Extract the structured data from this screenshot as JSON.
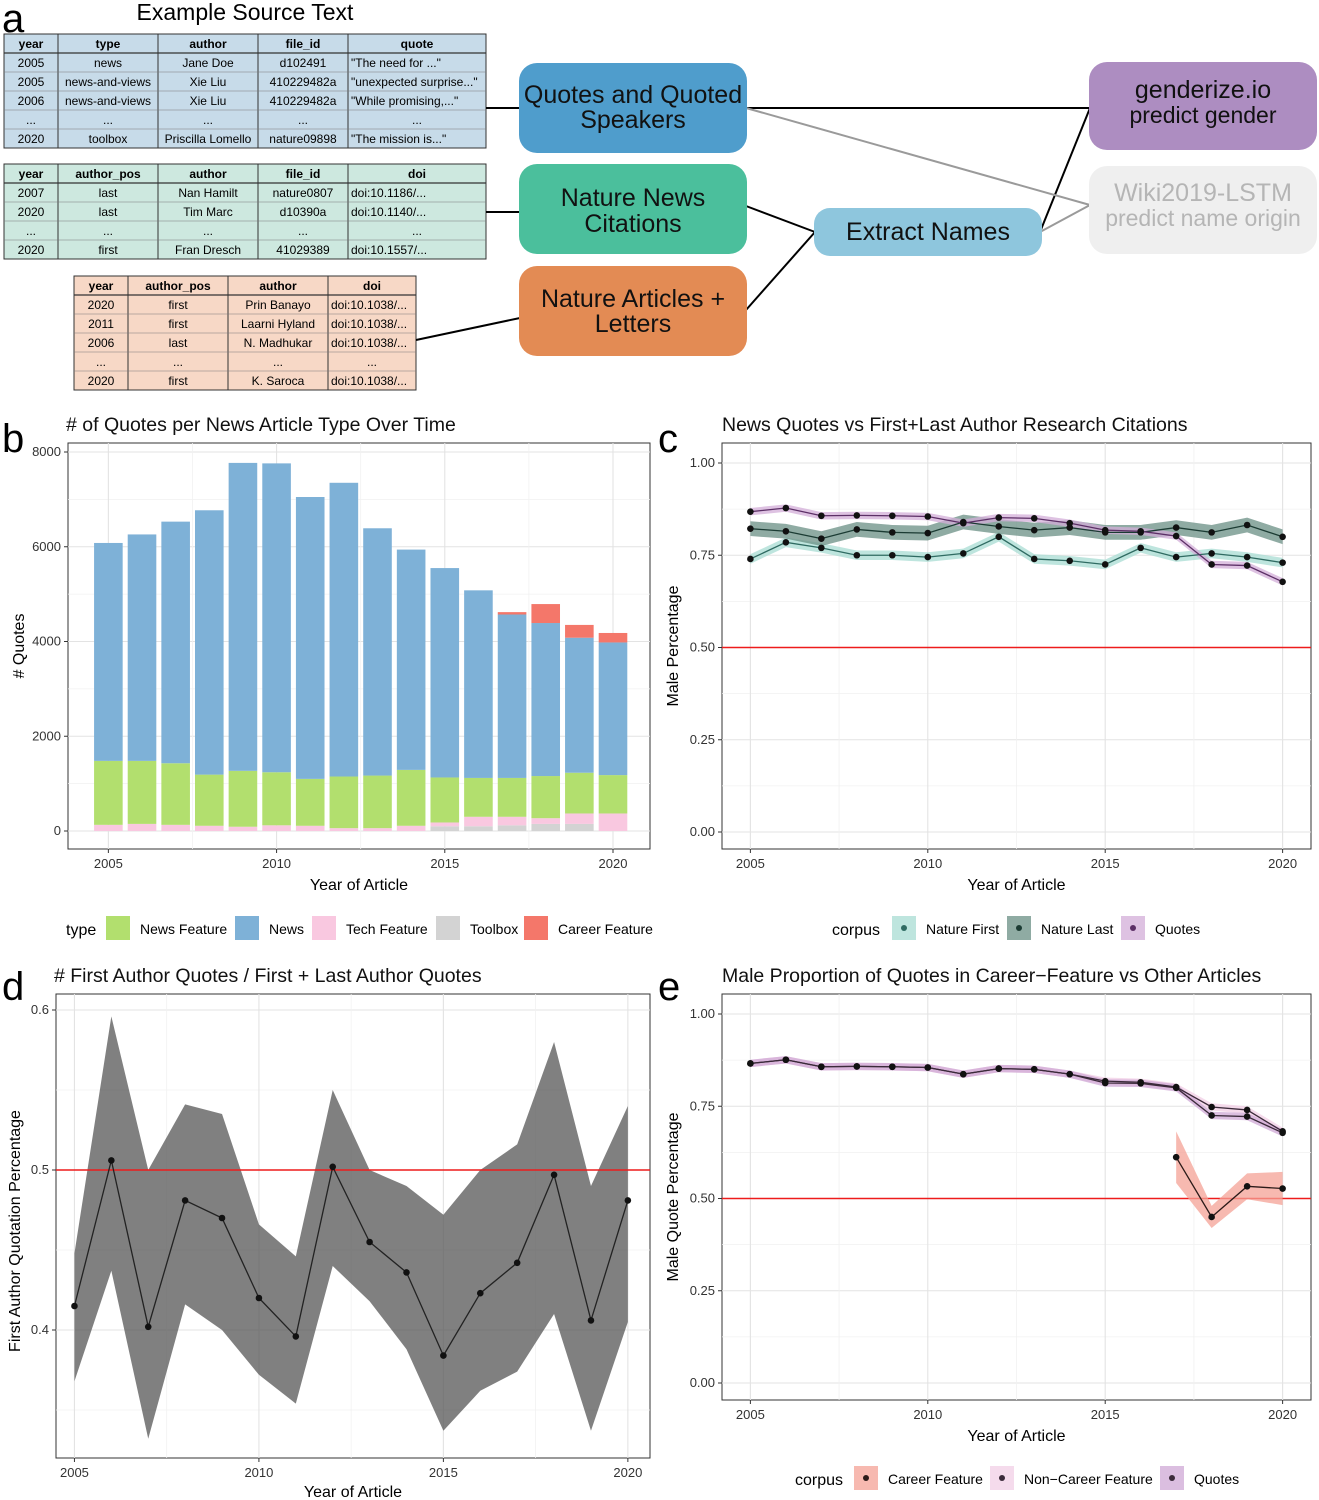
{
  "panel_letters": {
    "a": "a",
    "b": "b",
    "c": "c",
    "d": "d",
    "e": "e"
  },
  "panel_a": {
    "title": "Example Source Text",
    "colors": {
      "blue_table": "#c7dbe9",
      "green_table": "#cde8df",
      "orange_table": "#f7d8c6"
    },
    "tables": [
      {
        "name": "quotes-table",
        "columns": [
          "year",
          "type",
          "author",
          "file_id",
          "quote"
        ],
        "rows": [
          [
            "2005",
            "news",
            "Jane Doe",
            "d102491",
            "\"The need for ...\""
          ],
          [
            "2005",
            "news-and-views",
            "Xie Liu",
            "410229482a",
            "\"unexpected surprise...\""
          ],
          [
            "2006",
            "news-and-views",
            "Xie Liu",
            "410229482a",
            "\"While promising,...\""
          ],
          [
            "...",
            "...",
            "...",
            "...",
            "..."
          ],
          [
            "2020",
            "toolbox",
            "Priscilla Lomello",
            "nature09898",
            "\"The mission is...\""
          ]
        ]
      },
      {
        "name": "citations-table",
        "columns": [
          "year",
          "author_pos",
          "author",
          "file_id",
          "doi"
        ],
        "rows": [
          [
            "2007",
            "last",
            "Nan Hamilt",
            "nature0807",
            "doi:10.1186/..."
          ],
          [
            "2020",
            "last",
            "Tim Marc",
            "d10390a",
            "doi:10.1140/..."
          ],
          [
            "...",
            "...",
            "...",
            "...",
            "..."
          ],
          [
            "2020",
            "first",
            "Fran Dresch",
            "41029389",
            "doi:10.1557/..."
          ]
        ]
      },
      {
        "name": "articles-table",
        "columns": [
          "year",
          "author_pos",
          "author",
          "doi"
        ],
        "rows": [
          [
            "2020",
            "first",
            "Prin Banayo",
            "doi:10.1038/..."
          ],
          [
            "2011",
            "first",
            "Laarni Hyland",
            "doi:10.1038/..."
          ],
          [
            "2006",
            "last",
            "N. Madhukar",
            "doi:10.1038/..."
          ],
          [
            "...",
            "...",
            "...",
            "..."
          ],
          [
            "2020",
            "first",
            "K. Saroca",
            "doi:10.1038/..."
          ]
        ]
      }
    ],
    "boxes": {
      "quotes": {
        "line1": "Quotes and Quoted",
        "line2": "Speakers",
        "color": "#4f9dcc"
      },
      "news": {
        "line1": "Nature News",
        "line2": "Citations",
        "color": "#4bbf9c"
      },
      "articles": {
        "line1": "Nature Articles +",
        "line2": "Letters",
        "color": "#e38b54"
      },
      "extract": {
        "line1": "Extract Names",
        "color": "#8ec6dd"
      },
      "genderize": {
        "line1": "genderize.io",
        "line2": "predict gender",
        "color": "#ad8dc1"
      },
      "wiki": {
        "line1": "Wiki2019-LSTM",
        "line2": "predict name origin",
        "color": "#efefef"
      }
    }
  },
  "chart_data": [
    {
      "id": "b",
      "type": "bar",
      "stacked": true,
      "title": "# of Quotes per News Article Type Over Time",
      "xlabel": "Year of Article",
      "ylabel": "# Quotes",
      "ylim": [
        0,
        8000
      ],
      "yticks": [
        "0",
        "2000",
        "4000",
        "6000",
        "8000"
      ],
      "xticks": [
        "2005",
        "2010",
        "2015",
        "2020"
      ],
      "categories": [
        2005,
        2006,
        2007,
        2008,
        2009,
        2010,
        2011,
        2012,
        2013,
        2014,
        2015,
        2016,
        2017,
        2018,
        2019,
        2020
      ],
      "series": [
        {
          "name": "Toolbox",
          "color": "#d3d3d3",
          "values": [
            0,
            0,
            0,
            0,
            0,
            0,
            0,
            0,
            0,
            0,
            100,
            100,
            120,
            150,
            150,
            0
          ]
        },
        {
          "name": "Tech Feature",
          "color": "#f9c8e0",
          "values": [
            130,
            150,
            130,
            110,
            90,
            120,
            110,
            60,
            60,
            110,
            80,
            200,
            180,
            120,
            220,
            370
          ]
        },
        {
          "name": "News Feature",
          "color": "#b2df6e",
          "values": [
            1350,
            1330,
            1300,
            1080,
            1180,
            1120,
            990,
            1090,
            1110,
            1180,
            950,
            820,
            820,
            890,
            860,
            810
          ]
        },
        {
          "name": "News",
          "color": "#7eb1d7",
          "values": [
            4600,
            4780,
            5100,
            5580,
            6500,
            6520,
            5950,
            6200,
            5220,
            4650,
            4420,
            3960,
            3450,
            3230,
            2850,
            2800
          ]
        },
        {
          "name": "Career Feature",
          "color": "#f4776a",
          "values": [
            0,
            0,
            0,
            0,
            0,
            0,
            0,
            0,
            0,
            0,
            0,
            0,
            50,
            400,
            270,
            200
          ]
        }
      ],
      "legend_title": "type",
      "legend": [
        "News Feature",
        "News",
        "Tech Feature",
        "Toolbox",
        "Career Feature"
      ]
    },
    {
      "id": "c",
      "type": "line",
      "title": "News Quotes vs First+Last Author Research Citations",
      "xlabel": "Year of Article",
      "ylabel": "Male Percentage",
      "ylim": [
        0,
        1
      ],
      "yticks": [
        "0.00",
        "0.25",
        "0.50",
        "0.75",
        "1.00"
      ],
      "xticks": [
        "2005",
        "2010",
        "2015",
        "2020"
      ],
      "reference_line": 0.5,
      "x": [
        2005,
        2006,
        2007,
        2008,
        2009,
        2010,
        2011,
        2012,
        2013,
        2014,
        2015,
        2016,
        2017,
        2018,
        2019,
        2020
      ],
      "series": [
        {
          "name": "Nature First",
          "fill": "#a8dcd3",
          "line": "#2f6b62",
          "values": [
            0.74,
            0.785,
            0.77,
            0.75,
            0.75,
            0.745,
            0.755,
            0.8,
            0.74,
            0.735,
            0.725,
            0.77,
            0.745,
            0.755,
            0.745,
            0.73
          ],
          "band": 0.013
        },
        {
          "name": "Nature Last",
          "fill": "#6a8f84",
          "line": "#1b3b33",
          "values": [
            0.822,
            0.815,
            0.795,
            0.82,
            0.812,
            0.81,
            0.84,
            0.828,
            0.818,
            0.825,
            0.812,
            0.812,
            0.825,
            0.812,
            0.832,
            0.8
          ],
          "band": 0.02
        },
        {
          "name": "Quotes",
          "fill": "#d3aed8",
          "line": "#5c2f66",
          "values": [
            0.868,
            0.878,
            0.857,
            0.858,
            0.857,
            0.855,
            0.837,
            0.852,
            0.85,
            0.837,
            0.818,
            0.815,
            0.802,
            0.725,
            0.722,
            0.678
          ],
          "band": 0.01
        }
      ],
      "legend_title": "corpus",
      "legend": [
        "Nature First",
        "Nature Last",
        "Quotes"
      ]
    },
    {
      "id": "d",
      "type": "line",
      "title": "# First Author Quotes /  First + Last Author Quotes",
      "xlabel": "Year of Article",
      "ylabel": "First Author Quotation Percentage",
      "ylim": [
        0.32,
        0.61
      ],
      "yticks": [
        "0.4",
        "0.5",
        "0.6"
      ],
      "xticks": [
        "2005",
        "2010",
        "2015",
        "2020"
      ],
      "reference_line": 0.5,
      "x": [
        2005,
        2006,
        2007,
        2008,
        2009,
        2010,
        2011,
        2012,
        2013,
        2014,
        2015,
        2016,
        2017,
        2018,
        2019,
        2020
      ],
      "values": [
        0.415,
        0.506,
        0.402,
        0.481,
        0.47,
        0.42,
        0.396,
        0.502,
        0.455,
        0.436,
        0.384,
        0.423,
        0.442,
        0.497,
        0.406,
        0.481
      ],
      "upper": [
        0.448,
        0.596,
        0.5,
        0.541,
        0.535,
        0.466,
        0.446,
        0.55,
        0.5,
        0.49,
        0.472,
        0.5,
        0.516,
        0.58,
        0.49,
        0.54
      ],
      "lower": [
        0.368,
        0.437,
        0.332,
        0.416,
        0.4,
        0.372,
        0.354,
        0.44,
        0.418,
        0.388,
        0.337,
        0.362,
        0.374,
        0.41,
        0.337,
        0.405
      ]
    },
    {
      "id": "e",
      "type": "line",
      "title": "Male Proportion of Quotes in Career−Feature vs Other Articles",
      "xlabel": "Year of Article",
      "ylabel": "Male Quote Percentage",
      "ylim": [
        0,
        1
      ],
      "yticks": [
        "0.00",
        "0.25",
        "0.50",
        "0.75",
        "1.00"
      ],
      "xticks": [
        "2005",
        "2010",
        "2015",
        "2020"
      ],
      "reference_line": 0.5,
      "series": [
        {
          "name": "Career Feature",
          "fill": "#f4a196",
          "line": "#2b1a18",
          "x": [
            2017,
            2018,
            2019,
            2020
          ],
          "values": [
            0.612,
            0.45,
            0.533,
            0.527
          ],
          "band": [
            0.07,
            0.03,
            0.035,
            0.045
          ]
        },
        {
          "name": "Non−Career Feature",
          "fill": "#f2cfe6",
          "line": "#3b2a3a",
          "x": [
            2005,
            2006,
            2007,
            2008,
            2009,
            2010,
            2011,
            2012,
            2013,
            2014,
            2015,
            2016,
            2017,
            2018,
            2019,
            2020
          ],
          "values": [
            0.866,
            0.876,
            0.857,
            0.858,
            0.857,
            0.855,
            0.837,
            0.852,
            0.85,
            0.837,
            0.818,
            0.815,
            0.802,
            0.748,
            0.74,
            0.682
          ],
          "band": 0.01
        },
        {
          "name": "Quotes",
          "fill": "#cfa8d6",
          "line": "#3b2a3a",
          "x": [
            2005,
            2006,
            2007,
            2008,
            2009,
            2010,
            2011,
            2012,
            2013,
            2014,
            2015,
            2016,
            2017,
            2018,
            2019,
            2020
          ],
          "values": [
            0.866,
            0.876,
            0.857,
            0.858,
            0.857,
            0.855,
            0.837,
            0.852,
            0.85,
            0.837,
            0.813,
            0.812,
            0.8,
            0.725,
            0.722,
            0.678
          ],
          "band": 0.01
        }
      ],
      "legend_title": "corpus",
      "legend": [
        "Career Feature",
        "Non−Career Feature",
        "Quotes"
      ]
    }
  ]
}
